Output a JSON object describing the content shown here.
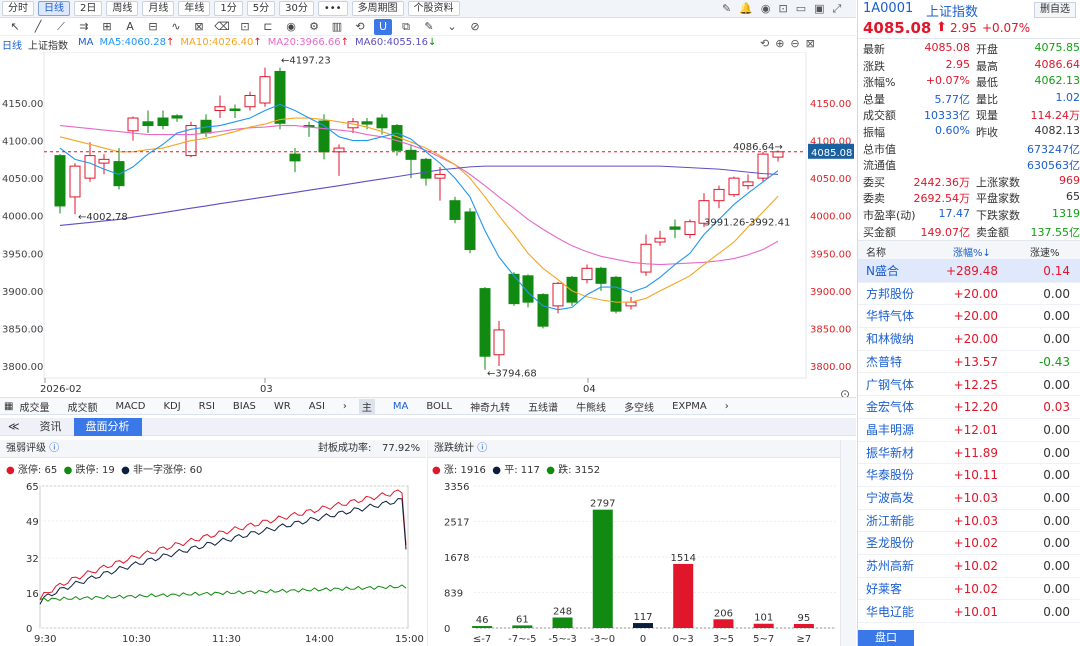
{
  "toolbar": {
    "buttons": [
      "分时",
      "日线",
      "2日",
      "周线",
      "月线",
      "年线",
      "1分",
      "5分",
      "30分",
      "•••",
      "多周期图",
      "个股资料"
    ],
    "active_index": 1
  },
  "legend": {
    "period": "日线",
    "name": "上证指数",
    "ma_label": "MA",
    "ma5": "MA5:4060.28",
    "ma10": "MA10:4026.40",
    "ma20": "MA20:3966.66",
    "ma60": "MA60:4055.16",
    "ma5_color": "#2196f3",
    "ma10_color": "#f5a623",
    "ma20_color": "#e56bc9",
    "ma60_color": "#5b4fc4"
  },
  "kchart": {
    "y_ticks": [
      "4150.00",
      "4100.00",
      "4050.00",
      "4000.00",
      "3950.00",
      "3900.00",
      "3850.00",
      "3800.00"
    ],
    "x_labels": [
      "2026-02",
      "03",
      "04"
    ],
    "annotations": {
      "high": "4197.23",
      "low": "3794.68",
      "left_low": "4002.78",
      "mid": "3991.26-3992.41",
      "last_high": "4086.64",
      "current": "4085.08"
    },
    "up_color": "#e0162b",
    "down_color": "#118a11"
  },
  "indicators": [
    "成交量",
    "成交额",
    "MACD",
    "KDJ",
    "RSI",
    "BIAS",
    "WR",
    "ASI"
  ],
  "overlays": [
    "主",
    "MA",
    "BOLL",
    "神奇九转",
    "五线谱",
    "牛熊线",
    "多空线",
    "EXPMA"
  ],
  "tabs": [
    "资讯",
    "盘面分析"
  ],
  "strength": {
    "title": "强弱评级",
    "success_label": "封板成功率:",
    "success_value": "77.92%",
    "leg_up": "涨停: 65",
    "leg_down": "跌停: 19",
    "leg_other": "非一字涨停: 60",
    "y_ticks": [
      "65",
      "49",
      "32",
      "16",
      "0"
    ],
    "x_ticks": [
      "9:30",
      "10:30",
      "11:30",
      "14:00",
      "15:00"
    ]
  },
  "dist": {
    "title": "涨跌统计",
    "leg_up": "涨: 1916",
    "leg_flat": "平: 117",
    "leg_down": "跌: 3152",
    "y_ticks": [
      "3356",
      "2517",
      "1678",
      "839",
      "0"
    ],
    "bars": [
      {
        "label": "≤-7",
        "value": 46,
        "color": "#118a11"
      },
      {
        "label": "-7~-5",
        "value": 61,
        "color": "#118a11"
      },
      {
        "label": "-5~-3",
        "value": 248,
        "color": "#118a11"
      },
      {
        "label": "-3~0",
        "value": 2797,
        "color": "#118a11"
      },
      {
        "label": "0",
        "value": 117,
        "color": "#0b1e3d"
      },
      {
        "label": "0~3",
        "value": 1514,
        "color": "#e0162b"
      },
      {
        "label": "3~5",
        "value": 206,
        "color": "#e0162b"
      },
      {
        "label": "5~7",
        "value": 101,
        "color": "#e0162b"
      },
      {
        "label": "≥7",
        "value": 95,
        "color": "#e0162b"
      }
    ],
    "ymax": 3356
  },
  "quote": {
    "code": "1A0001",
    "name": "上证指数",
    "price": "4085.08",
    "change": "2.95",
    "pct": "+0.07%",
    "remove_label": "删自选",
    "rows": [
      [
        "最新",
        "4085.08",
        "开盘",
        "4075.85"
      ],
      [
        "涨跌",
        "2.95",
        "最高",
        "4086.64"
      ],
      [
        "涨幅%",
        "+0.07%",
        "最低",
        "4062.13"
      ],
      [
        "总量",
        "5.77亿",
        "量比",
        "1.02"
      ],
      [
        "成交额",
        "10333亿",
        "现量",
        "114.24万"
      ],
      [
        "振幅",
        "0.60%",
        "昨收",
        "4082.13"
      ],
      [
        "总市值",
        "",
        "",
        "673247亿"
      ],
      [
        "流通值",
        "",
        "",
        "630563亿"
      ],
      [
        "委买",
        "2442.36万",
        "上涨家数",
        "969"
      ],
      [
        "委卖",
        "2692.54万",
        "平盘家数",
        "65"
      ],
      [
        "市盈率(动)",
        "17.47",
        "下跌家数",
        "1319"
      ],
      [
        "买金额",
        "149.07亿",
        "卖金额",
        "137.55亿"
      ]
    ]
  },
  "list": {
    "headers": [
      "名称",
      "涨幅%↓",
      "涨速%"
    ],
    "rows": [
      [
        "N盛合",
        "+289.48",
        "0.14"
      ],
      [
        "方邦股份",
        "+20.00",
        "0.00"
      ],
      [
        "华特气体",
        "+20.00",
        "0.00"
      ],
      [
        "和林微纳",
        "+20.00",
        "0.00"
      ],
      [
        "杰普特",
        "+13.57",
        "-0.43"
      ],
      [
        "广钢气体",
        "+12.25",
        "0.00"
      ],
      [
        "金宏气体",
        "+12.20",
        "0.03"
      ],
      [
        "晶丰明源",
        "+12.01",
        "0.00"
      ],
      [
        "振华新材",
        "+11.89",
        "0.00"
      ],
      [
        "华泰股份",
        "+10.11",
        "0.00"
      ],
      [
        "宁波高发",
        "+10.03",
        "0.00"
      ],
      [
        "浙江新能",
        "+10.03",
        "0.00"
      ],
      [
        "圣龙股份",
        "+10.02",
        "0.00"
      ],
      [
        "苏州高新",
        "+10.02",
        "0.00"
      ],
      [
        "好莱客",
        "+10.02",
        "0.00"
      ],
      [
        "华电辽能",
        "+10.01",
        "0.00"
      ]
    ],
    "footer": "盘口"
  }
}
